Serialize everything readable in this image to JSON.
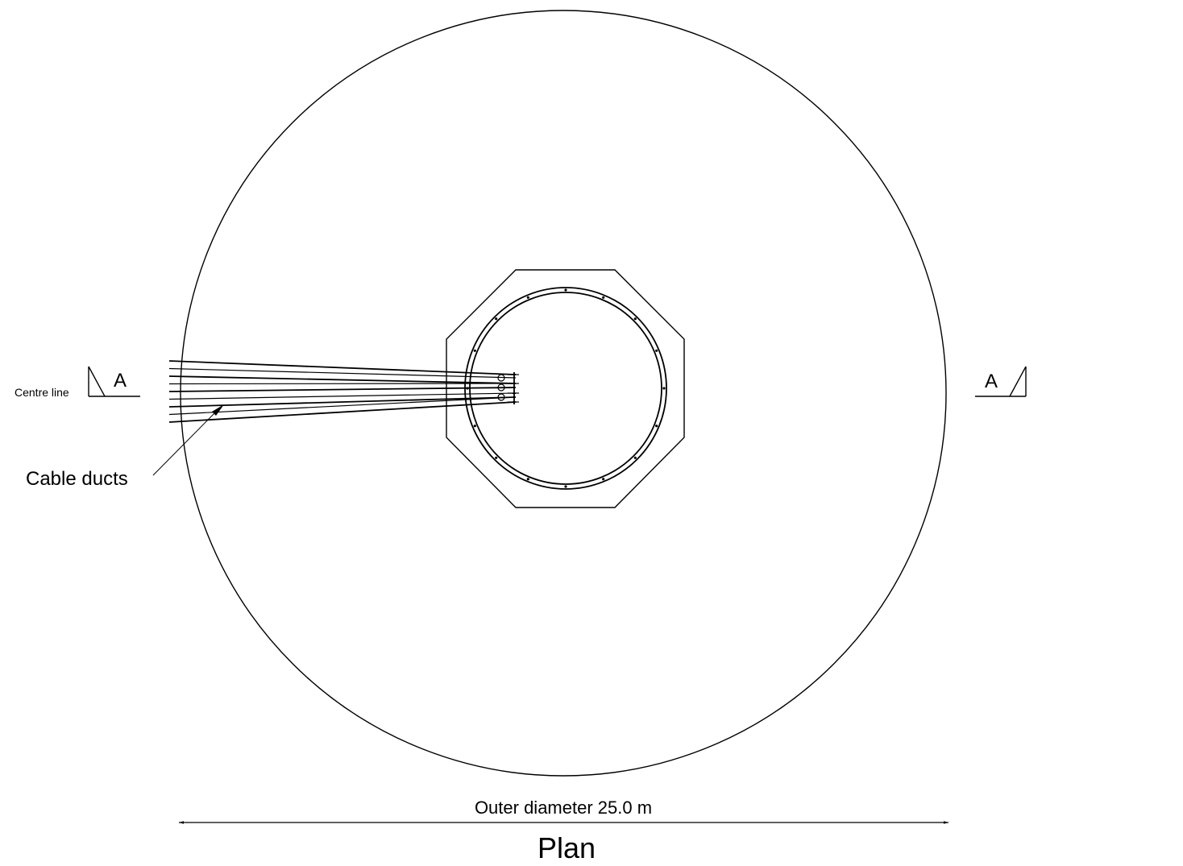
{
  "labels": {
    "centre_line": "Centre line",
    "section_left": "A",
    "section_right": "A",
    "cable_ducts": "Cable ducts",
    "outer_diameter": "Outer diameter 25.0 m",
    "plan": "Plan"
  },
  "colors": {
    "line": "#000000",
    "background": "#ffffff"
  }
}
